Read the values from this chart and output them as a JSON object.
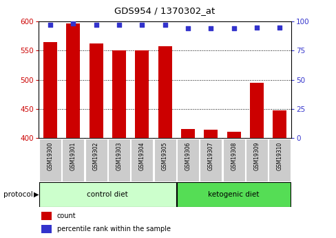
{
  "title": "GDS954 / 1370302_at",
  "samples": [
    "GSM19300",
    "GSM19301",
    "GSM19302",
    "GSM19303",
    "GSM19304",
    "GSM19305",
    "GSM19306",
    "GSM19307",
    "GSM19308",
    "GSM19309",
    "GSM19310"
  ],
  "counts": [
    565,
    596,
    562,
    550,
    550,
    558,
    415,
    414,
    411,
    495,
    448
  ],
  "percentile_ranks": [
    97,
    98,
    97,
    97,
    97,
    97,
    94,
    94,
    94,
    95,
    95
  ],
  "bar_color": "#cc0000",
  "dot_color": "#3333cc",
  "ylim_left": [
    400,
    600
  ],
  "ylim_right": [
    0,
    100
  ],
  "yticks_left": [
    400,
    450,
    500,
    550,
    600
  ],
  "yticks_right": [
    0,
    25,
    50,
    75,
    100
  ],
  "groups": [
    {
      "label": "control diet",
      "indices": [
        0,
        1,
        2,
        3,
        4,
        5
      ],
      "color": "#ccffcc"
    },
    {
      "label": "ketogenic diet",
      "indices": [
        6,
        7,
        8,
        9,
        10
      ],
      "color": "#55dd55"
    }
  ],
  "protocol_label": "protocol",
  "legend": [
    {
      "label": "count",
      "color": "#cc0000"
    },
    {
      "label": "percentile rank within the sample",
      "color": "#3333cc"
    }
  ],
  "bg_color": "#ffffff",
  "bar_width": 0.6,
  "tick_bg": "#cccccc",
  "grid_color": "#000000",
  "border_color": "#000000"
}
